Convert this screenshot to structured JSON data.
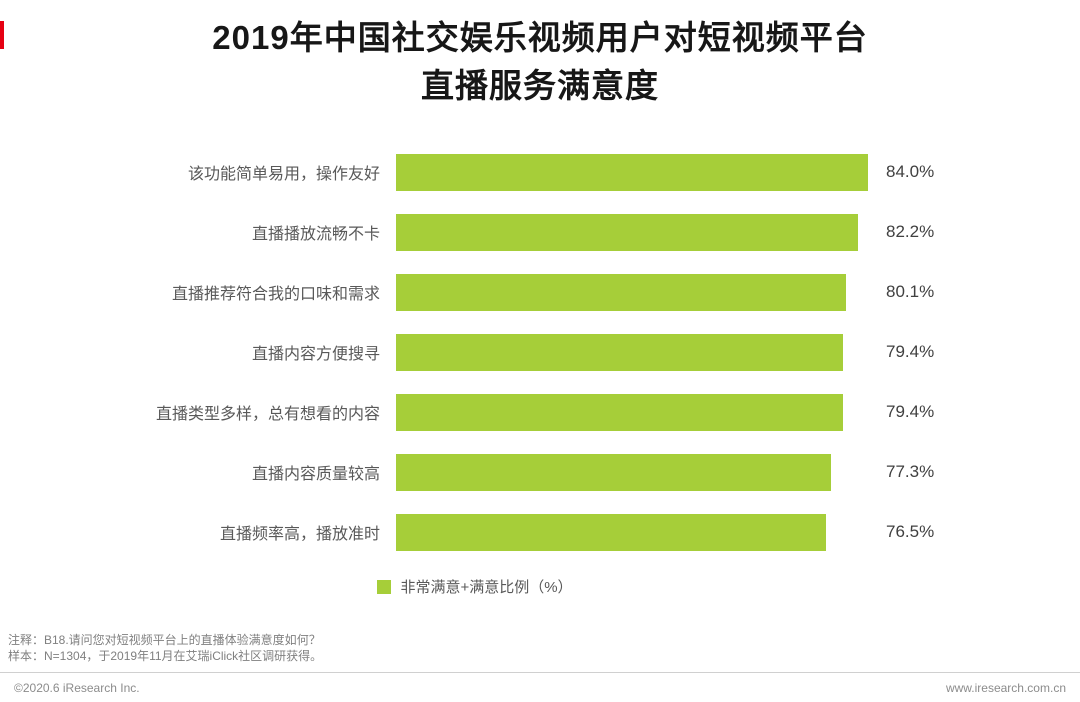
{
  "brand": {
    "accent_red": "#e60012"
  },
  "title": {
    "line1": "2019年中国社交娱乐视频用户对短视频平台",
    "line2": "直播服务满意度"
  },
  "chart_data": {
    "type": "bar",
    "orientation": "horizontal",
    "title": "2019年中国社交娱乐视频用户对短视频平台直播服务满意度",
    "categories": [
      "该功能简单易用，操作友好",
      "直播播放流畅不卡",
      "直播推荐符合我的口味和需求",
      "直播内容方便搜寻",
      "直播类型多样，总有想看的内容",
      "直播内容质量较高",
      "直播频率高，播放准时"
    ],
    "values": [
      84.0,
      82.2,
      80.1,
      79.4,
      79.4,
      77.3,
      76.5
    ],
    "value_labels": [
      "84.0%",
      "82.2%",
      "80.1%",
      "79.4%",
      "79.4%",
      "77.3%",
      "76.5%"
    ],
    "axis_max": 85,
    "bar_color": "#a6ce39",
    "grid": false,
    "legend_position": "bottom",
    "legend": [
      "非常满意+满意比例（%）"
    ]
  },
  "legend": {
    "label": "非常满意+满意比例（%）"
  },
  "notes": {
    "line1": "注释：B18.请问您对短视频平台上的直播体验满意度如何？",
    "line2": "样本：N=1304，于2019年11月在艾瑞iClick社区调研获得。"
  },
  "footer": {
    "left": "©2020.6 iResearch Inc.",
    "right": "www.iresearch.com.cn"
  }
}
